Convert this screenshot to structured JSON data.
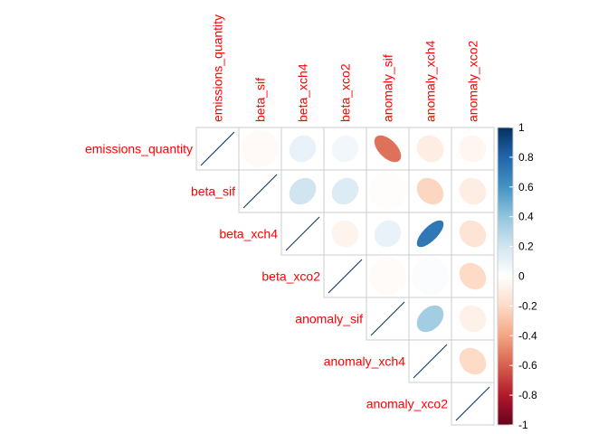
{
  "chart_data": {
    "type": "heatmap",
    "subtype": "correlation-matrix-upper-ellipse",
    "variables": [
      "emissions_quantity",
      "beta_sif",
      "beta_xch4",
      "beta_xco2",
      "anomaly_sif",
      "anomaly_xch4",
      "anomaly_xco2"
    ],
    "matrix": [
      [
        1.0,
        -0.03,
        0.1,
        0.06,
        -0.55,
        -0.1,
        -0.05
      ],
      [
        null,
        1.0,
        0.2,
        0.15,
        -0.01,
        -0.22,
        -0.1
      ],
      [
        null,
        null,
        1.0,
        -0.06,
        0.1,
        0.72,
        -0.15
      ],
      [
        null,
        null,
        null,
        1.0,
        -0.02,
        0.02,
        -0.2
      ],
      [
        null,
        null,
        null,
        null,
        1.0,
        0.35,
        -0.08
      ],
      [
        null,
        null,
        null,
        null,
        null,
        1.0,
        -0.2
      ],
      [
        null,
        null,
        null,
        null,
        null,
        null,
        1.0
      ]
    ],
    "colorbar": {
      "ticks": [
        "1",
        "0.8",
        "0.6",
        "0.4",
        "0.2",
        "0",
        "-0.2",
        "-0.4",
        "-0.6",
        "-0.8",
        "-1"
      ],
      "range": [
        -1,
        1
      ],
      "placement": "right",
      "colors": [
        "#67001f",
        "#b2182b",
        "#d6604d",
        "#f4a582",
        "#fddbc7",
        "#ffffff",
        "#d1e5f0",
        "#92c5de",
        "#4393c3",
        "#2166ac",
        "#053061"
      ]
    },
    "label_color": "#ff0000",
    "grid_color": "#cccccc",
    "diagonal_style": "line"
  }
}
